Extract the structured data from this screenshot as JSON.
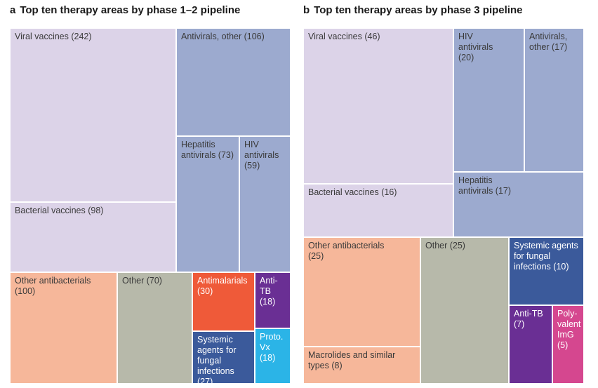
{
  "colors": {
    "vaccines": "#dcd3e8",
    "antivirals": "#9caacf",
    "antibacterials": "#f6b79a",
    "other": "#b7b9aa",
    "antimalarials": "#ef5a39",
    "antitb": "#6a2f94",
    "fungal": "#3b5a9b",
    "proto": "#2bb4e7",
    "polyvalent": "#d5478f"
  },
  "panels": [
    {
      "letter": "a",
      "title": "Top ten therapy areas by phase 1–2 pipeline",
      "chart_data": {
        "type": "treemap",
        "title": "Top ten therapy areas by phase 1–2 pipeline",
        "items": [
          {
            "name": "Viral vaccines",
            "value": 242,
            "label": "Viral vaccines (242)",
            "group": "vaccines"
          },
          {
            "name": "Bacterial vaccines",
            "value": 98,
            "label": "Bacterial vaccines (98)",
            "group": "vaccines"
          },
          {
            "name": "Antivirals, other",
            "value": 106,
            "label": "Antivirals, other (106)",
            "group": "antivirals"
          },
          {
            "name": "Hepatitis antivirals",
            "value": 73,
            "label": "Hepatitis\nantivirals (73)",
            "group": "antivirals"
          },
          {
            "name": "HIV antivirals",
            "value": 59,
            "label": "HIV\nantivirals\n(59)",
            "group": "antivirals"
          },
          {
            "name": "Other antibacterials",
            "value": 100,
            "label": "Other antibacterials\n(100)",
            "group": "antibacterials"
          },
          {
            "name": "Other",
            "value": 70,
            "label": "Other (70)",
            "group": "other"
          },
          {
            "name": "Antimalarials",
            "value": 30,
            "label": "Antimalarials\n(30)",
            "group": "antimalarials",
            "text": "light"
          },
          {
            "name": "Anti-TB",
            "value": 18,
            "label": "Anti-TB\n(18)",
            "group": "antitb",
            "text": "light"
          },
          {
            "name": "Systemic agents for fungal infections",
            "value": 27,
            "label": "Systemic\nagents for\nfungal\ninfections (27)",
            "group": "fungal",
            "text": "light"
          },
          {
            "name": "Proto. Vx",
            "value": 18,
            "label": "Proto.\nVx (18)",
            "group": "proto",
            "text": "light"
          }
        ]
      }
    },
    {
      "letter": "b",
      "title": "Top ten therapy areas by phase 3 pipeline",
      "chart_data": {
        "type": "treemap",
        "title": "Top ten therapy areas by phase 3 pipeline",
        "items": [
          {
            "name": "Viral vaccines",
            "value": 46,
            "label": "Viral vaccines (46)",
            "group": "vaccines"
          },
          {
            "name": "Bacterial vaccines",
            "value": 16,
            "label": "Bacterial vaccines (16)",
            "group": "vaccines"
          },
          {
            "name": "HIV antivirals",
            "value": 20,
            "label": "HIV\nantivirals\n(20)",
            "group": "antivirals"
          },
          {
            "name": "Antivirals, other",
            "value": 17,
            "label": "Antivirals,\nother (17)",
            "group": "antivirals"
          },
          {
            "name": "Hepatitis antivirals",
            "value": 17,
            "label": "Hepatitis\nantivirals (17)",
            "group": "antivirals"
          },
          {
            "name": "Other antibacterials",
            "value": 25,
            "label": "Other antibacterials\n(25)",
            "group": "antibacterials"
          },
          {
            "name": "Macrolides and similar types",
            "value": 8,
            "label": "Macrolides and similar\ntypes (8)",
            "group": "antibacterials"
          },
          {
            "name": "Other",
            "value": 25,
            "label": "Other (25)",
            "group": "other"
          },
          {
            "name": "Systemic agents for fungal infections",
            "value": 10,
            "label": "Systemic agents\nfor fungal\ninfections (10)",
            "group": "fungal",
            "text": "light"
          },
          {
            "name": "Anti-TB",
            "value": 7,
            "label": "Anti-TB\n(7)",
            "group": "antitb",
            "text": "light"
          },
          {
            "name": "Polyvalent ImG",
            "value": 5,
            "label": "Poly-\nvalent\nImG\n(5)",
            "group": "polyvalent",
            "text": "light"
          }
        ]
      }
    }
  ]
}
